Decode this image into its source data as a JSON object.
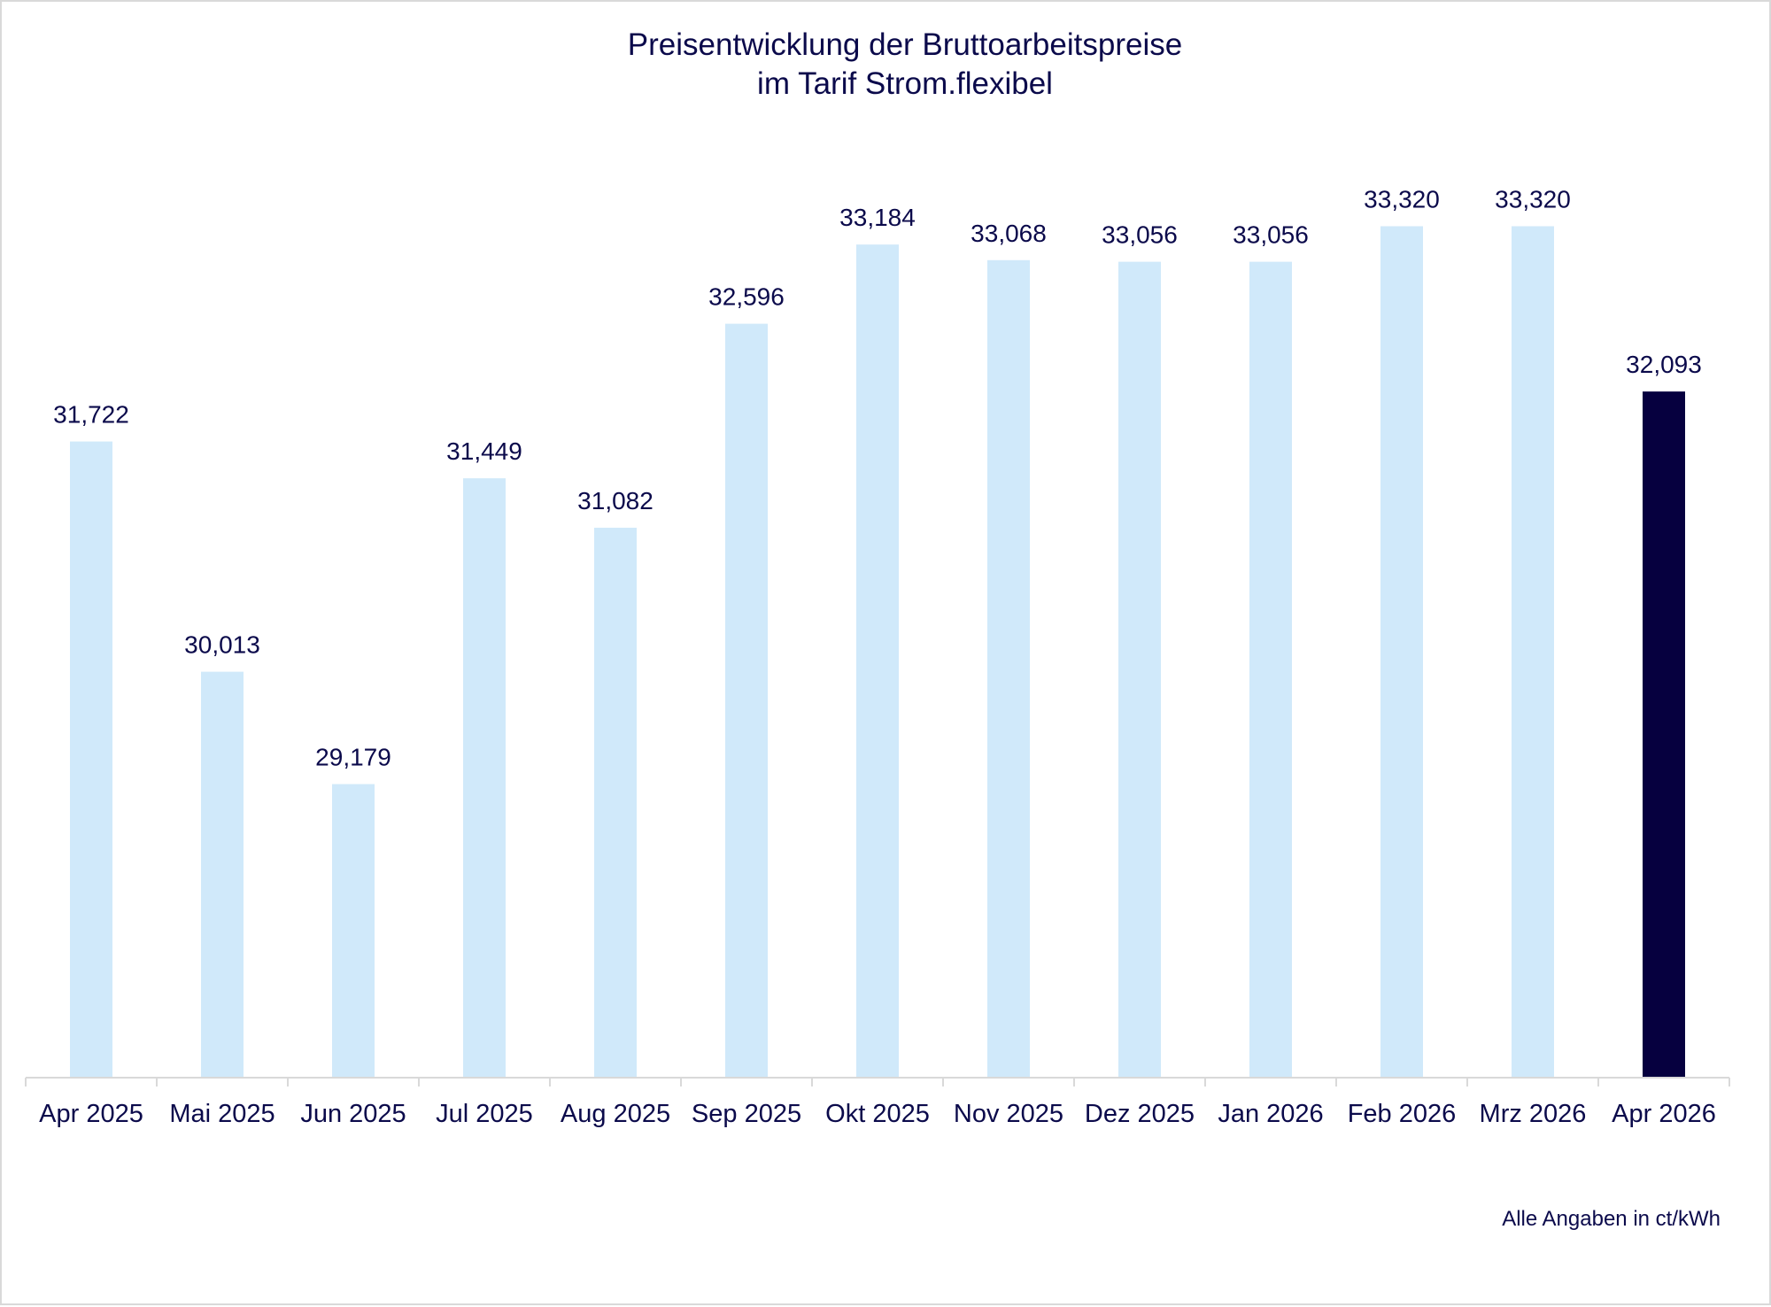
{
  "chart_data": {
    "type": "bar",
    "title": [
      "Preisentwicklung der Bruttoarbeitspreise",
      "im Tarif Strom.flexibel"
    ],
    "xlabel": "",
    "ylabel": "",
    "footnote": "Alle Angaben in ct/kWh",
    "categories": [
      "Apr 2025",
      "Mai 2025",
      "Jun 2025",
      "Jul 2025",
      "Aug 2025",
      "Sep 2025",
      "Okt 2025",
      "Nov 2025",
      "Dez 2025",
      "Jan 2026",
      "Feb 2026",
      "Mrz 2026",
      "Apr 2026"
    ],
    "values": [
      31.722,
      30.013,
      29.179,
      31.449,
      31.082,
      32.596,
      33.184,
      33.068,
      33.056,
      33.056,
      33.32,
      33.32,
      32.093
    ],
    "value_labels": [
      "31,722",
      "30,013",
      "29,179",
      "31,449",
      "31,082",
      "32,596",
      "33,184",
      "33,068",
      "33,056",
      "33,056",
      "33,320",
      "33,320",
      "32,093"
    ],
    "highlight_index": 12,
    "ylim": [
      27,
      34
    ],
    "grid": false,
    "legend": "none",
    "colors": {
      "bar": "#d0e9fa",
      "highlight": "#06003f",
      "text": "#0b0a4b",
      "axis": "#d9d9d9"
    }
  }
}
